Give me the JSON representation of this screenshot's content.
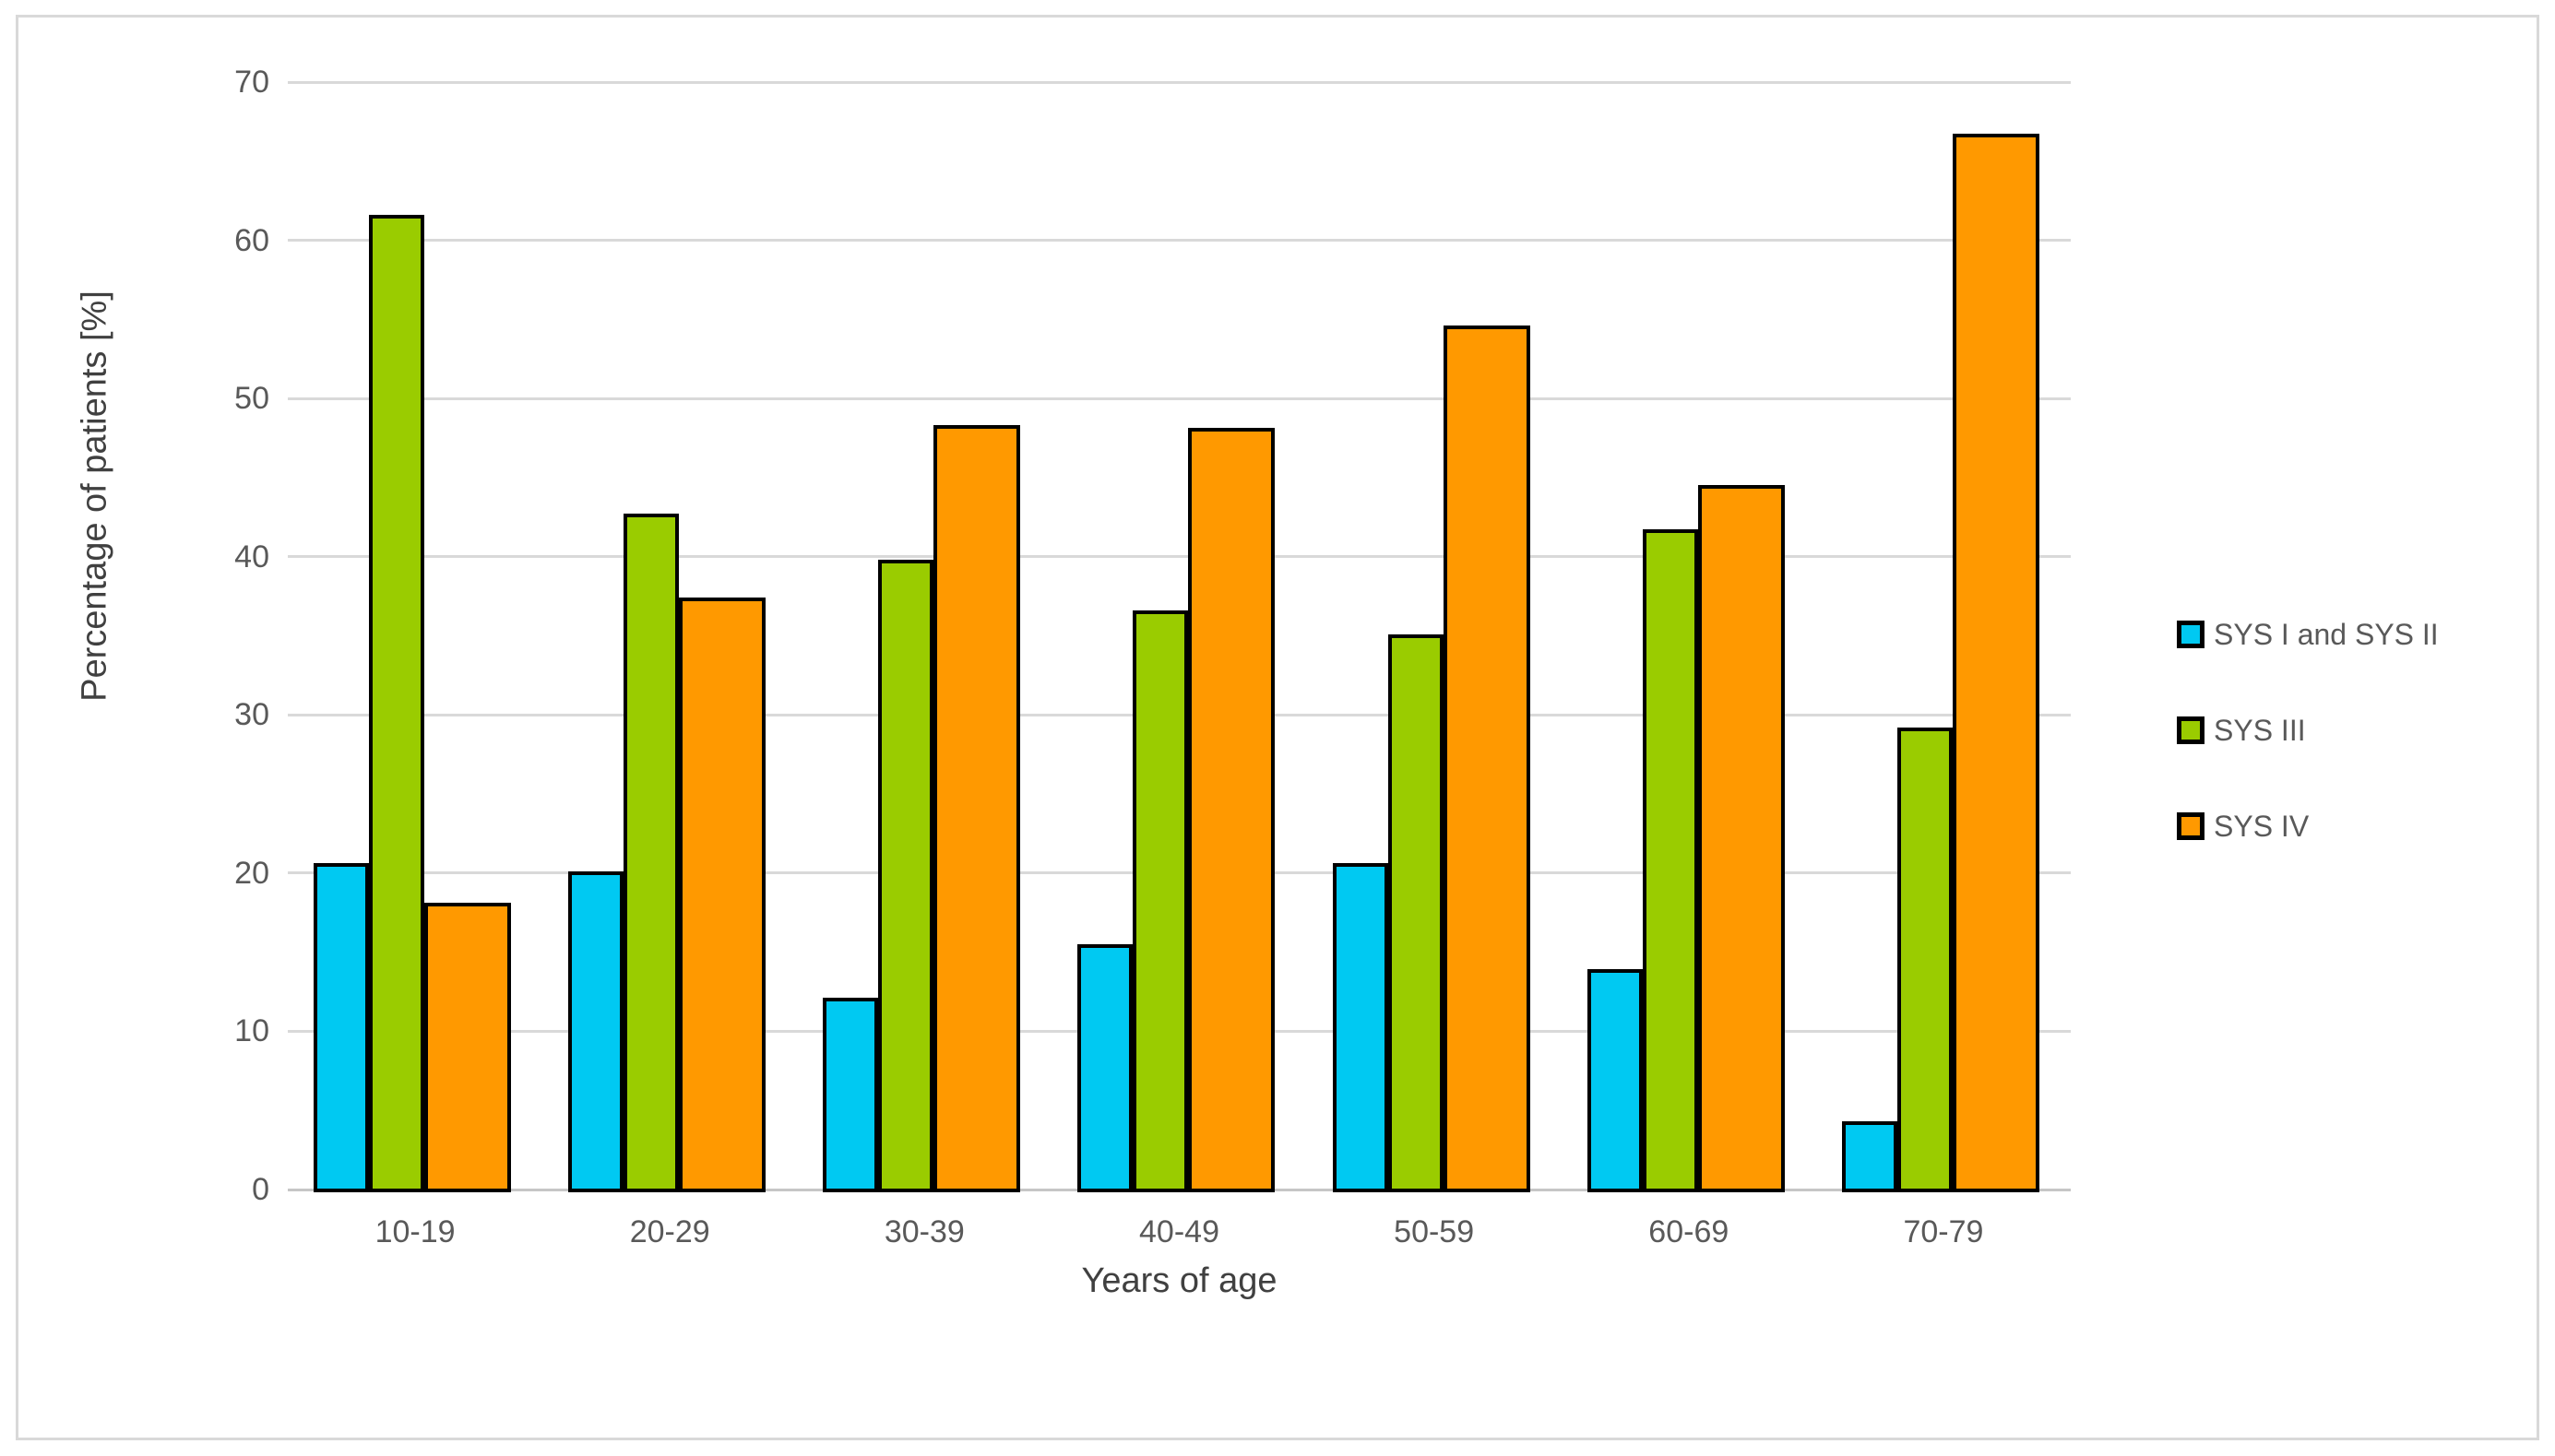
{
  "figure": {
    "background_color": "#FFFFFF",
    "frame_color": "#D9D9D9",
    "text_color": "#595959",
    "axis_title_color": "#404040",
    "gridline_color": "#D9D9D9",
    "axis_line_color": "#C6C6C6",
    "bar_border_color": "#000000"
  },
  "chart_data": {
    "type": "bar",
    "title": "",
    "categories": [
      "10-19",
      "20-29",
      "30-39",
      "40-49",
      "50-59",
      "60-69",
      "70-79"
    ],
    "series": [
      {
        "name": "SYS I and SYS II",
        "color": "#00C9F2",
        "values": [
          20.5,
          20.0,
          12.0,
          15.4,
          20.5,
          13.8,
          4.2
        ]
      },
      {
        "name": "SYS III",
        "color": "#9ACC00",
        "values": [
          61.5,
          42.6,
          39.7,
          36.5,
          35.0,
          41.6,
          29.1
        ]
      },
      {
        "name": "SYS IV",
        "color": "#FF9900",
        "values": [
          18.0,
          37.3,
          48.2,
          48.0,
          54.5,
          44.4,
          66.6
        ]
      }
    ],
    "xlabel": "Years of age",
    "ylabel": "Percentage of patients [%]",
    "ylim": [
      0,
      70
    ],
    "ytick_step": 10,
    "yticks": [
      0,
      10,
      20,
      30,
      40,
      50,
      60,
      70
    ],
    "grid": true,
    "legend_position": "right",
    "bar_outline": true
  }
}
